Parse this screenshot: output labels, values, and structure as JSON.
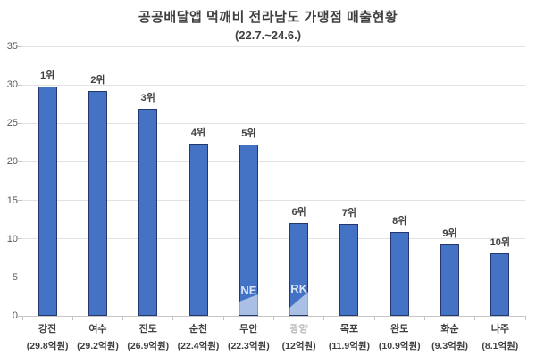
{
  "chart_data": {
    "type": "bar",
    "title": "공공배달앱 먹깨비 전라남도 가맹점 매출현황",
    "subtitle": "(22.7.~24.6.)",
    "categories": [
      "강진",
      "여수",
      "진도",
      "순천",
      "무안",
      "광양",
      "목포",
      "완도",
      "화순",
      "나주"
    ],
    "values": [
      29.8,
      29.2,
      26.9,
      22.4,
      22.3,
      12,
      11.9,
      10.9,
      9.3,
      8.1
    ],
    "value_labels": [
      "(29.8억원)",
      "(29.2억원)",
      "(26.9억원)",
      "(22.4억원)",
      "(22.3억원)",
      "(12억원)",
      "(11.9억원)",
      "(10.9억원)",
      "(9.3억원)",
      "(8.1억원)"
    ],
    "rank_labels": [
      "1위",
      "2위",
      "3위",
      "4위",
      "5위",
      "6위",
      "7위",
      "8위",
      "9위",
      "10위"
    ],
    "xlabel": "",
    "ylabel": "",
    "ylim": [
      0,
      35
    ],
    "yticks": [
      0,
      5,
      10,
      15,
      20,
      25,
      30,
      35
    ],
    "grid": true,
    "legend": "none",
    "faded_category_index": 5,
    "colors": {
      "bar_fill": "#4472C4",
      "bar_border": "#24386B",
      "gridline": "#E2E2E2",
      "axis_line": "#C6C6C6",
      "ytick_label": "#595959",
      "text": "#3F3F3F",
      "faded_label": "#B5B5B5"
    },
    "watermark": {
      "fragments": [
        "NE",
        "RK"
      ],
      "text_color": "rgba(255,255,255,0.8)",
      "shape_color": "rgba(255,255,255,0.55)"
    }
  }
}
